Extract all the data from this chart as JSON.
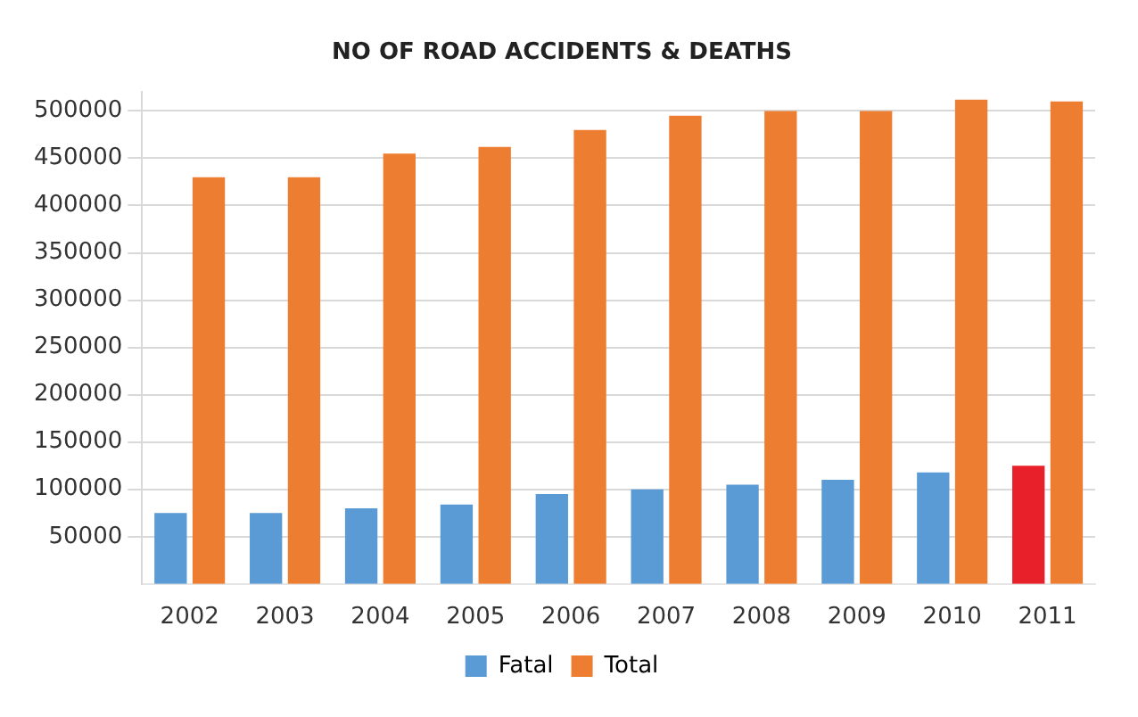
{
  "chart_data": {
    "type": "bar",
    "title": "NO OF ROAD ACCIDENTS & DEATHS",
    "categories": [
      "2002",
      "2003",
      "2004",
      "2005",
      "2006",
      "2007",
      "2008",
      "2009",
      "2010",
      "2011"
    ],
    "series": [
      {
        "name": "Fatal",
        "color": "#5b9bd5",
        "colors": [
          "#5b9bd5",
          "#5b9bd5",
          "#5b9bd5",
          "#5b9bd5",
          "#5b9bd5",
          "#5b9bd5",
          "#5b9bd5",
          "#5b9bd5",
          "#5b9bd5",
          "#e8202a"
        ],
        "values": [
          75000,
          75000,
          80000,
          84000,
          95000,
          100000,
          105000,
          110000,
          118000,
          125000
        ]
      },
      {
        "name": "Total",
        "color": "#ed7d31",
        "values": [
          430000,
          430000,
          455000,
          462000,
          480000,
          495000,
          500000,
          500000,
          512000,
          510000
        ]
      }
    ],
    "ylim": [
      0,
      520000
    ],
    "yticks": [
      50000,
      100000,
      150000,
      200000,
      250000,
      300000,
      350000,
      400000,
      450000,
      500000
    ],
    "grid": "y",
    "legend": "bottom"
  }
}
